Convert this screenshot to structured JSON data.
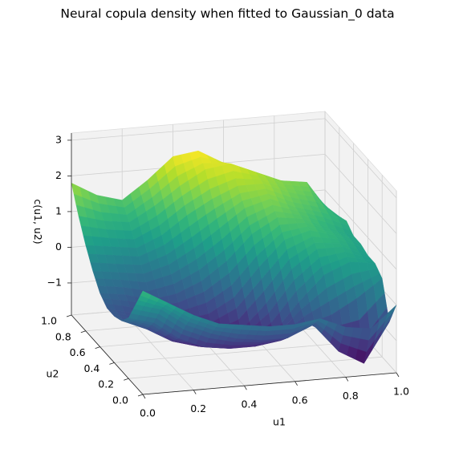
{
  "chart_data": {
    "type": "surface",
    "title": "Neural copula density when fitted to Gaussian_0 data",
    "xlabel": "u1",
    "ylabel": "u2",
    "zlabel": "c(u1, u2)",
    "xticks": [
      "0.0",
      "0.2",
      "0.4",
      "0.6",
      "0.8",
      "1.0"
    ],
    "yticks": [
      "0.0",
      "0.2",
      "0.4",
      "0.6",
      "0.8",
      "1.0"
    ],
    "zticks": [
      "−1",
      "0",
      "1",
      "2",
      "3"
    ],
    "xlim": [
      0,
      1
    ],
    "ylim": [
      0,
      1
    ],
    "zlim": [
      -1.9,
      3.2
    ],
    "colormap": "viridis",
    "grid": true,
    "u1": [
      0.0,
      0.1,
      0.2,
      0.3,
      0.4,
      0.5,
      0.6,
      0.7,
      0.8,
      0.9,
      1.0
    ],
    "u2": [
      0.0,
      0.1,
      0.2,
      0.3,
      0.4,
      0.5,
      0.6,
      0.7,
      0.8,
      0.9,
      1.0
    ],
    "z": [
      [
        1.0,
        0.4,
        -0.2,
        -0.5,
        -0.6,
        -0.6,
        -0.4,
        0.0,
        0.5,
        1.1,
        1.8
      ],
      [
        0.6,
        0.2,
        -0.4,
        -0.8,
        -0.9,
        -0.8,
        -0.5,
        -0.1,
        0.4,
        0.9,
        1.4
      ],
      [
        0.2,
        -0.3,
        -0.9,
        -1.2,
        -1.2,
        -1.0,
        -0.7,
        -0.2,
        0.3,
        0.8,
        1.2
      ],
      [
        -0.1,
        -0.6,
        -1.2,
        -1.4,
        -1.4,
        -1.1,
        -0.6,
        0.0,
        0.6,
        1.2,
        1.7
      ],
      [
        -0.2,
        -0.8,
        -1.3,
        -1.5,
        -1.5,
        -1.0,
        -0.3,
        0.4,
        1.1,
        1.7,
        2.3
      ],
      [
        -0.3,
        -0.9,
        -1.3,
        -1.5,
        -1.3,
        -0.6,
        0.2,
        0.9,
        1.5,
        2.1,
        2.4
      ],
      [
        -0.3,
        -0.9,
        -1.2,
        -1.2,
        -0.6,
        0.2,
        0.9,
        1.4,
        1.8,
        2.2,
        2.0
      ],
      [
        -0.2,
        -0.6,
        -0.8,
        -0.4,
        0.3,
        0.9,
        1.3,
        1.6,
        1.8,
        1.9,
        1.6
      ],
      [
        -0.5,
        -1.4,
        -0.6,
        0.3,
        0.8,
        1.1,
        1.2,
        1.3,
        1.5,
        1.6,
        1.4
      ],
      [
        -0.6,
        -1.8,
        -0.2,
        0.6,
        0.8,
        0.9,
        0.9,
        1.1,
        1.3,
        1.5,
        1.2
      ],
      [
        0.0,
        -0.7,
        0.3,
        0.5,
        0.5,
        0.6,
        0.6,
        0.8,
        0.7,
        0.5,
        0.3
      ]
    ]
  }
}
